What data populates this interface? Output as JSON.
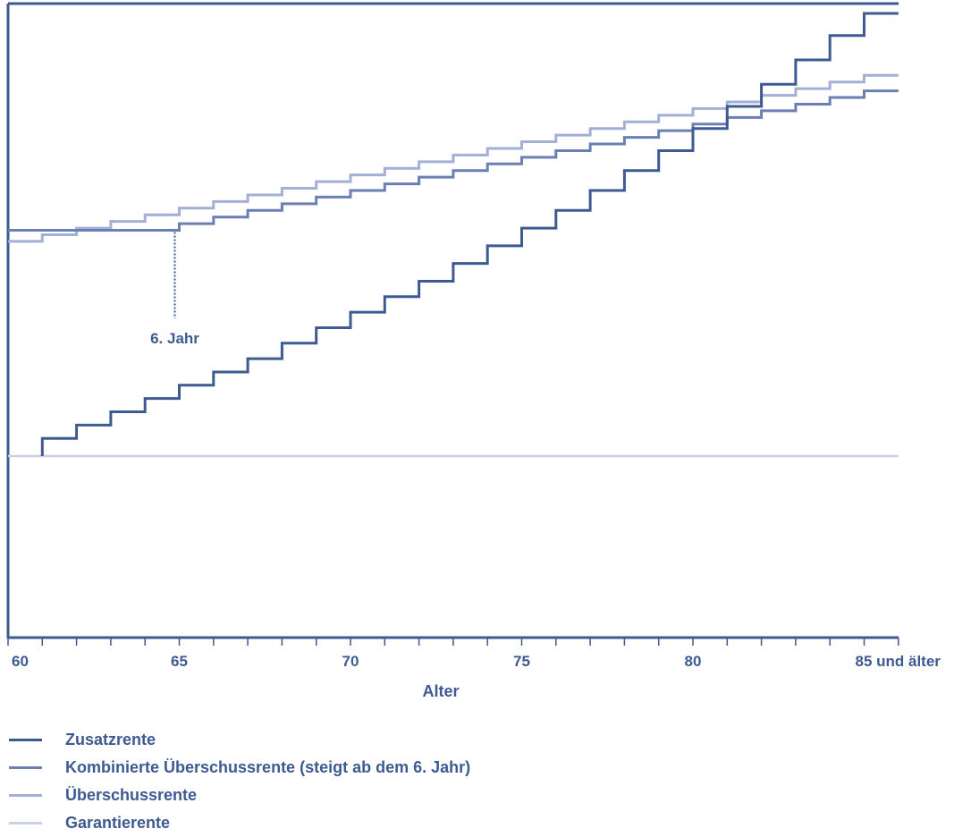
{
  "chart_data": {
    "type": "line",
    "step": true,
    "xlabel": "Alter",
    "ylabel": "",
    "xlim": [
      60,
      86
    ],
    "x_ticks": [
      60,
      65,
      70,
      75,
      80,
      85
    ],
    "x_tick_labels": [
      "60",
      "65",
      "70",
      "75",
      "80",
      "85 und älter"
    ],
    "grid": false,
    "legend_position": "bottom-left",
    "annotation": {
      "text": "6. Jahr",
      "x": 65
    },
    "series": [
      {
        "name": "Zusatzrente",
        "color": "#3d5a92",
        "x": [
          61,
          62,
          63,
          64,
          65,
          66,
          67,
          68,
          69,
          70,
          71,
          72,
          73,
          74,
          75,
          76,
          77,
          78,
          79,
          80,
          81,
          82,
          83,
          84,
          85
        ],
        "y": [
          4,
          7,
          10,
          13,
          16,
          19,
          22,
          25.5,
          29,
          32.5,
          36,
          39.5,
          43.5,
          47.5,
          51.5,
          55.5,
          60,
          64.5,
          69,
          74,
          79,
          84,
          89.5,
          95,
          100
        ]
      },
      {
        "name": "Kombinierte Überschussrente (steigt ab dem 6. Jahr)",
        "color": "#6a7fb3",
        "x": [
          60,
          61,
          62,
          63,
          64,
          65,
          66,
          67,
          68,
          69,
          70,
          71,
          72,
          73,
          74,
          75,
          76,
          77,
          78,
          79,
          80,
          81,
          82,
          83,
          84,
          85
        ],
        "y": [
          51,
          51,
          51,
          51,
          51,
          52.5,
          54,
          55.5,
          57,
          58.5,
          60,
          61.5,
          63,
          64.5,
          66,
          67.5,
          69,
          70.5,
          72,
          73.5,
          75,
          76.5,
          78,
          79.5,
          81,
          82.5
        ]
      },
      {
        "name": "Überschussrente",
        "color": "#a3b0d6",
        "x": [
          60,
          61,
          62,
          63,
          64,
          65,
          66,
          67,
          68,
          69,
          70,
          71,
          72,
          73,
          74,
          75,
          76,
          77,
          78,
          79,
          80,
          81,
          82,
          83,
          84,
          85
        ],
        "y": [
          48.5,
          50,
          51.5,
          53,
          54.5,
          56,
          57.5,
          59,
          60.5,
          62,
          63.5,
          65,
          66.5,
          68,
          69.5,
          71,
          72.5,
          74,
          75.5,
          77,
          78.5,
          80,
          81.5,
          83,
          84.5,
          86
        ]
      },
      {
        "name": "Garantierente",
        "color": "#c9cfe8",
        "x": [
          60,
          86
        ],
        "y": [
          0,
          0
        ]
      }
    ]
  }
}
